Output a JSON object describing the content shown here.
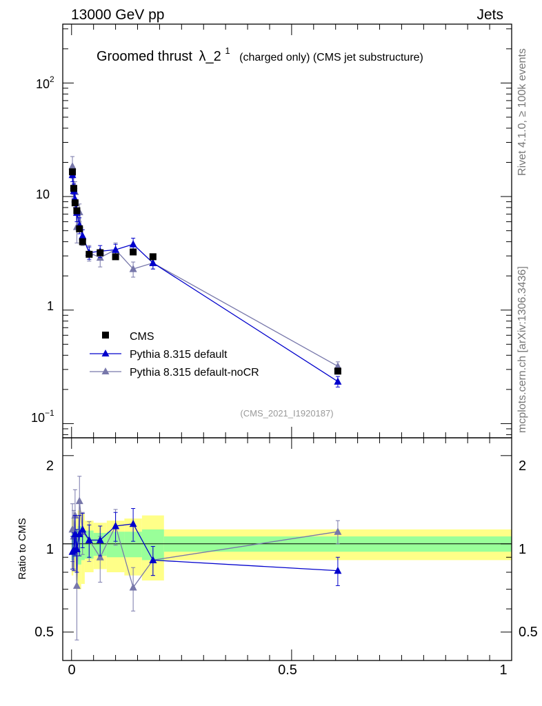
{
  "header": {
    "left": "13000 GeV pp",
    "right": "Jets"
  },
  "side_labels": {
    "rivet": "Rivet 4.1.0, ≥ 100k events",
    "mcplots": "mcplots.cern.ch [arXiv:1306.3436]"
  },
  "chart_data": {
    "type": "line",
    "title_main": "Groomed thrust",
    "title_symbol": "λ_2",
    "title_sup": "1",
    "title_tail": "(charged only) (CMS jet substructure)",
    "analysis_tag": "(CMS_2021_I1920187)",
    "xlim": [
      -0.02,
      1.0
    ],
    "main_ylim": [
      0.075,
      330
    ],
    "main_yscale": "log",
    "main_ytick_labels": {
      "tick_100": "10",
      "tick_100_exp": "2",
      "tick_10": "10",
      "tick_1": "1",
      "tick_01": "10",
      "tick_01_exp": "−1"
    },
    "ratio_ylabel": "Ratio to CMS",
    "ratio_ylim": [
      0.4,
      2.3
    ],
    "ratio_ytick_labels": [
      "2",
      "1",
      "0.5"
    ],
    "x_tick_labels": [
      "0",
      "0.5",
      "1"
    ],
    "legend_position": "center-left",
    "legend": {
      "cms": "CMS",
      "default": "Pythia 8.315 default",
      "nocr": "Pythia 8.315 default-noCR"
    },
    "x": [
      0.002,
      0.005,
      0.008,
      0.012,
      0.018,
      0.025,
      0.04,
      0.065,
      0.1,
      0.14,
      0.185,
      0.605
    ],
    "bin_edges": [
      0.0,
      0.004,
      0.006,
      0.01,
      0.014,
      0.022,
      0.03,
      0.05,
      0.08,
      0.12,
      0.16,
      0.21,
      1.0
    ],
    "series": [
      {
        "name": "CMS",
        "color": "#000000",
        "values": [
          16.5,
          11.8,
          8.8,
          7.5,
          5.2,
          4.0,
          3.1,
          3.2,
          2.95,
          3.25,
          2.95,
          0.29
        ]
      },
      {
        "name": "Pythia 8.315 default",
        "color": "#0000cc",
        "values": [
          15.5,
          11.2,
          9.5,
          7.2,
          5.6,
          4.5,
          3.2,
          3.3,
          3.4,
          3.8,
          2.6,
          0.235
        ],
        "errors": [
          2.0,
          1.7,
          1.5,
          1.2,
          0.9,
          0.6,
          0.4,
          0.4,
          0.4,
          0.5,
          0.3,
          0.025
        ]
      },
      {
        "name": "Pythia 8.315 default-noCR",
        "color": "#7777aa",
        "values": [
          18.5,
          12.5,
          11.0,
          5.4,
          7.3,
          4.4,
          3.2,
          2.9,
          3.4,
          2.3,
          2.6,
          0.32
        ],
        "errors": [
          4.0,
          2.8,
          2.5,
          1.5,
          1.3,
          0.7,
          0.5,
          0.5,
          0.5,
          0.35,
          0.3,
          0.03
        ]
      }
    ],
    "ratio_series": [
      {
        "name": "Pythia 8.315 default",
        "values": [
          0.94,
          0.95,
          1.08,
          0.96,
          1.08,
          1.12,
          1.03,
          1.03,
          1.15,
          1.17,
          0.88,
          0.81
        ],
        "errors": [
          0.12,
          0.14,
          0.17,
          0.16,
          0.17,
          0.15,
          0.13,
          0.12,
          0.13,
          0.15,
          0.1,
          0.09
        ]
      },
      {
        "name": "Pythia 8.315 default-noCR",
        "values": [
          1.12,
          1.06,
          1.25,
          0.72,
          1.4,
          1.1,
          1.03,
          0.9,
          1.15,
          0.71,
          0.88,
          1.1
        ],
        "errors": [
          0.25,
          0.24,
          0.28,
          0.25,
          0.3,
          0.18,
          0.16,
          0.16,
          0.16,
          0.12,
          0.1,
          0.1
        ]
      }
    ],
    "cms_band_inner": [
      0.12,
      0.1,
      0.1,
      0.12,
      0.15,
      0.12,
      0.11,
      0.09,
      0.1,
      0.1,
      0.12,
      0.06
    ],
    "cms_band_outer": [
      0.22,
      0.2,
      0.2,
      0.25,
      0.3,
      0.27,
      0.2,
      0.18,
      0.2,
      0.22,
      0.25,
      0.12
    ],
    "band_colors": {
      "inner": "#99ff99",
      "outer": "#ffff88"
    }
  }
}
